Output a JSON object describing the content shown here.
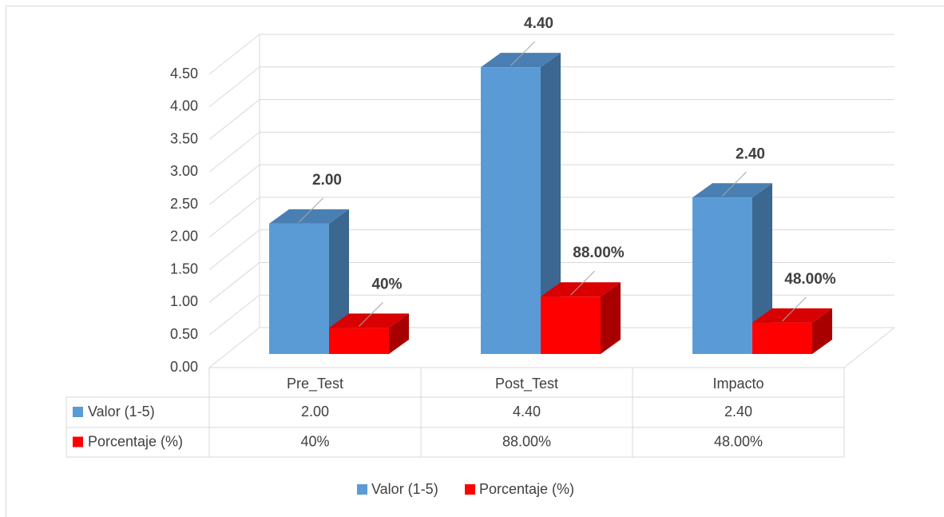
{
  "chart_data": {
    "type": "bar3d",
    "categories": [
      "Pre_Test",
      "Post_Test",
      "Impacto"
    ],
    "series": [
      {
        "name": "Valor (1-5)",
        "color": "#5b9bd5",
        "values": [
          2.0,
          4.4,
          2.4
        ],
        "value_labels": [
          "2.00",
          "4.40",
          "2.40"
        ]
      },
      {
        "name": "Porcentaje (%)",
        "color": "#ff0000",
        "values": [
          0.4,
          0.88,
          0.48
        ],
        "value_labels": [
          "40%",
          "88.00%",
          "48.00%"
        ]
      }
    ],
    "ylim": [
      0,
      4.5
    ],
    "yticks": [
      {
        "value": 0,
        "label": "0.00"
      },
      {
        "value": 0.5,
        "label": "0.50"
      },
      {
        "value": 1,
        "label": "1.00"
      },
      {
        "value": 1.5,
        "label": "1.50"
      },
      {
        "value": 2,
        "label": "2.00"
      },
      {
        "value": 2.5,
        "label": "2.50"
      },
      {
        "value": 3,
        "label": "3.00"
      },
      {
        "value": 3.5,
        "label": "3.50"
      },
      {
        "value": 4,
        "label": "4.00"
      },
      {
        "value": 4.5,
        "label": "4.50"
      }
    ],
    "grid": true,
    "data_table": true,
    "legend": "bottom"
  }
}
